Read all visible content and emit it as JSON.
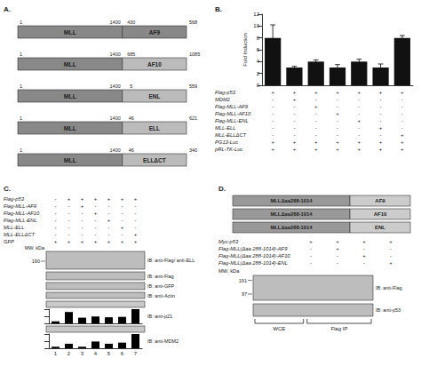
{
  "chart_data": [
    {
      "type": "schematic",
      "title": "A.",
      "color": "#888888",
      "constructs": [
        {
          "mll_label": "MLL",
          "partner_label": "AF9",
          "color": "#888888",
          "start": 1,
          "mll_end": 1400,
          "p1": 430,
          "p2": 568
        },
        {
          "mll_label": "MLL",
          "partner_label": "AF10",
          "color": "#bbbbbb",
          "start": 1,
          "mll_end": 1400,
          "p1": 685,
          "p2": 1085
        },
        {
          "mll_label": "MLL",
          "partner_label": "ENL",
          "color": "#bbbbbb",
          "start": 1,
          "mll_end": 1400,
          "p1": 5,
          "p2": 559
        },
        {
          "mll_label": "MLL",
          "partner_label": "ELL",
          "color": "#bbbbbb",
          "start": 1,
          "mll_end": 1400,
          "p1": 46,
          "p2": 621
        },
        {
          "mll_label": "MLL",
          "partner_label": "ELLΔCT",
          "color": "#bbbbbb",
          "start": 1,
          "mll_end": 1400,
          "p1": 46,
          "p2": 340
        }
      ]
    },
    {
      "type": "bar",
      "title": "B.",
      "ylabel": "Fold Induction",
      "categories": [
        null,
        null,
        null,
        null,
        null,
        null,
        null
      ],
      "values": [
        8.0,
        3.0,
        4.0,
        3.0,
        4.0,
        3.0,
        8.0
      ],
      "errors": [
        2.2,
        0.2,
        0.3,
        0.5,
        0.4,
        0.6,
        0.4
      ],
      "color": "#111111",
      "ylim": [
        0,
        12
      ],
      "yticks": [
        0,
        2,
        4,
        6,
        8,
        10,
        12
      ],
      "grid": false,
      "tick_labels": "y",
      "rows": [
        [
          "Flag-p53",
          "+",
          "+",
          "+",
          "+",
          "+",
          "+",
          "+"
        ],
        [
          "MDM2",
          "-",
          "+",
          "-",
          "-",
          "-",
          "-",
          "-"
        ],
        [
          "Flag-MLL-AF9",
          "-",
          "-",
          "+",
          "-",
          "-",
          "-",
          "-"
        ],
        [
          "Flag-MLL-AF10",
          "-",
          "-",
          "-",
          "+",
          "-",
          "-",
          "-"
        ],
        [
          "Flag-MLL-ENL",
          "-",
          "-",
          "-",
          "-",
          "+",
          "-",
          "-"
        ],
        [
          "MLL-ELL",
          "-",
          "-",
          "-",
          "-",
          "-",
          "+",
          "-"
        ],
        [
          "MLL-ELLΔCT",
          "-",
          "-",
          "-",
          "-",
          "-",
          "-",
          "+"
        ],
        [
          "PG13-Luc",
          "+",
          "+",
          "+",
          "+",
          "+",
          "+",
          "+"
        ],
        [
          "pRL-TK-Luc",
          "+",
          "+",
          "+",
          "+",
          "+",
          "+",
          "+"
        ]
      ]
    },
    {
      "type": "blot",
      "title": "C.",
      "rows": [
        [
          "Flag-p53",
          "-",
          "+",
          "+",
          "+",
          "+",
          "+",
          "+"
        ],
        [
          "Flag-MLL-AF9",
          "-",
          "-",
          "+",
          "-",
          "-",
          "-",
          "-"
        ],
        [
          "Flag-MLL-AF10",
          "-",
          "-",
          "-",
          "+",
          "-",
          "-",
          "-"
        ],
        [
          "Flag-MLL-ENL",
          "-",
          "-",
          "-",
          "-",
          "+",
          "-",
          "-"
        ],
        [
          "MLL-ELL",
          "-",
          "-",
          "-",
          "-",
          "-",
          "+",
          "-"
        ],
        [
          "MLL-ELLΔCT",
          "-",
          "-",
          "-",
          "-",
          "-",
          "-",
          "+"
        ],
        [
          "GFP",
          "+",
          "+",
          "+",
          "+",
          "+",
          "+",
          "+"
        ]
      ],
      "mw_label": "MW, kDa",
      "mw_markers": [
        190
      ],
      "blots": [
        "IB: anti-Flag/ anti-ELL",
        "IB: anti-Flag",
        "IB: anti-GFP",
        "IB: anti-Actin"
      ]
    },
    {
      "type": "bar",
      "annotation": "IB: anti-p21",
      "categories": [
        "1",
        "2",
        "3",
        "4",
        "5",
        "6",
        "7"
      ],
      "values": [
        0.5,
        2.8,
        1.4,
        1.7,
        1.5,
        1.6,
        3.5
      ],
      "color": "#000000",
      "ylim": [
        0,
        3.5
      ],
      "yticks": [
        0,
        1.75,
        3.5
      ],
      "grid": false,
      "tick_labels": false
    },
    {
      "type": "bar",
      "annotation": "IB: anti-MDM2",
      "categories": [
        "1",
        "2",
        "3",
        "4",
        "5",
        "6",
        "7"
      ],
      "values": [
        0.4,
        1.2,
        0.4,
        1.8,
        1.2,
        1.5,
        3.8
      ],
      "color": "#000000",
      "ylim": [
        0,
        3.8
      ],
      "yticks": [
        0,
        1.9,
        3.8
      ],
      "grid": false,
      "tick_labels": "x"
    },
    {
      "type": "blot",
      "title": "D.",
      "colors": [
        "#999999",
        "#cccccc"
      ],
      "constructs": [
        {
          "left_label": "MLLΔaa288-1014",
          "right_label": "AF9"
        },
        {
          "left_label": "MLLΔaa288-1014",
          "right_label": "AF10"
        },
        {
          "left_label": "MLLΔaa288-1014",
          "right_label": "ENL"
        }
      ],
      "rows": [
        [
          "Myc-p53",
          "+",
          "+",
          "+",
          "+"
        ],
        [
          "Flag-MLL(Δaa 288-1014)-AF9",
          "-",
          "+",
          "-",
          "-"
        ],
        [
          "Flag-MLL(Δaa 288-1014)-AF10",
          "-",
          "-",
          "+",
          "-"
        ],
        [
          "Flag-MLL(Δaa 288-1014)-ENL",
          "-",
          "-",
          "-",
          "+"
        ]
      ],
      "mw_label": "MW, kDa",
      "mw_markers": [
        191,
        97
      ],
      "blots": [
        "IB: anti-Flag",
        "IB: anti-p53"
      ],
      "groups": [
        "WCE",
        "Flag IP"
      ]
    }
  ]
}
